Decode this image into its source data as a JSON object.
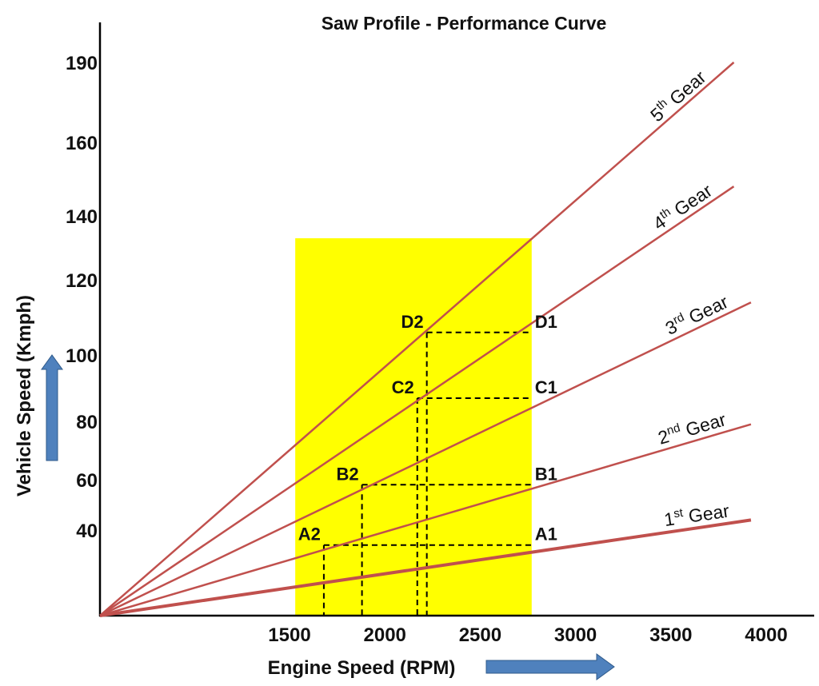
{
  "chart_data": {
    "type": "line",
    "title": "Saw Profile - Performance Curve",
    "xlabel": "Engine Speed (RPM)",
    "ylabel": "Vehicle Speed (Kmph)",
    "x_ticks": [
      1500,
      2000,
      2500,
      3000,
      3500,
      4000
    ],
    "y_ticks": [
      40,
      60,
      80,
      100,
      120,
      140,
      160,
      190
    ],
    "series": [
      {
        "name": "1st Gear",
        "ordinal": "1",
        "suffix": "st",
        "word": "Gear",
        "x_end": 3920,
        "y_end": 44
      },
      {
        "name": "2nd Gear",
        "ordinal": "2",
        "suffix": "nd",
        "word": "Gear",
        "x_end": 3920,
        "y_end": 79
      },
      {
        "name": "3rd Gear",
        "ordinal": "3",
        "suffix": "rd",
        "word": "Gear",
        "x_end": 3920,
        "y_end": 114
      },
      {
        "name": "4th Gear",
        "ordinal": "4",
        "suffix": "th",
        "word": "Gear",
        "x_end": 3830,
        "y_end": 148
      },
      {
        "name": "5th Gear",
        "ordinal": "5",
        "suffix": "th",
        "word": "Gear",
        "x_end": 3830,
        "y_end": 190
      }
    ],
    "highlight_band": {
      "x": [
        1530,
        2770
      ],
      "y_top": 133,
      "color": "#ffff00"
    },
    "points": [
      {
        "label": "A1",
        "x": 2770,
        "y": 33
      },
      {
        "label": "A2",
        "x": 1680,
        "y": 33
      },
      {
        "label": "B1",
        "x": 2770,
        "y": 58
      },
      {
        "label": "B2",
        "x": 1880,
        "y": 58
      },
      {
        "label": "C1",
        "x": 2770,
        "y": 87
      },
      {
        "label": "C2",
        "x": 2170,
        "y": 87
      },
      {
        "label": "D1",
        "x": 2770,
        "y": 106
      },
      {
        "label": "D2",
        "x": 2220,
        "y": 106
      }
    ],
    "line_color": "#c0504d",
    "arrow_color": "#4f81bd"
  }
}
